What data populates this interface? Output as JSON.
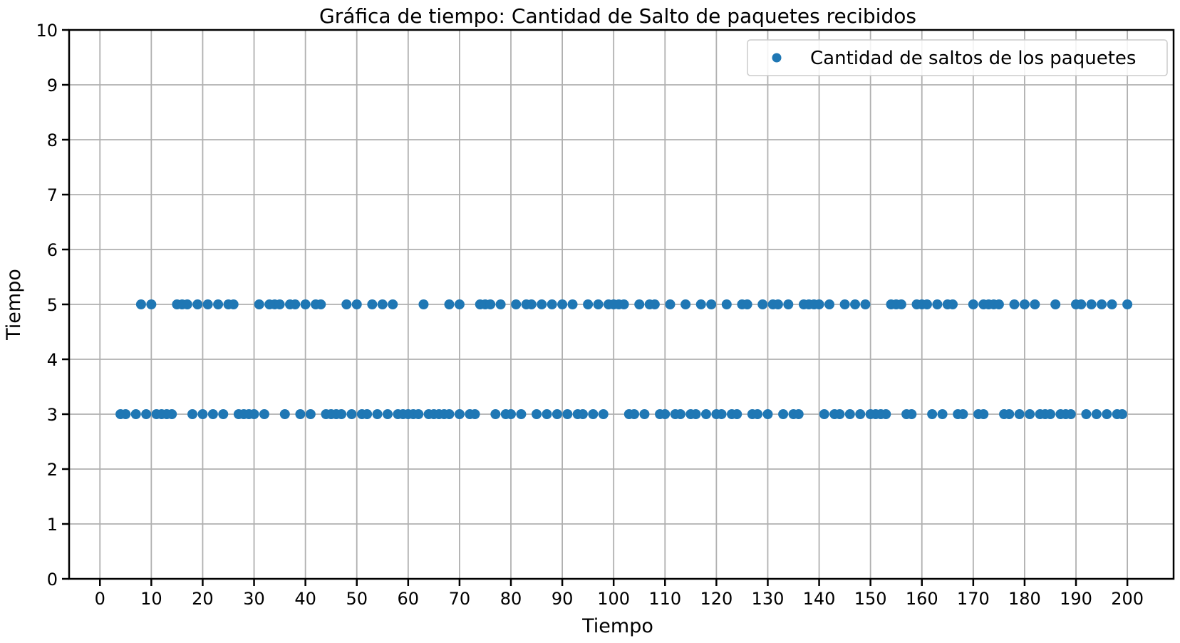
{
  "chart_data": {
    "type": "scatter",
    "title": "Gráfica de tiempo: Cantidad de Salto de paquetes recibidos",
    "xlabel": "Tiempo",
    "ylabel": "Tiempo",
    "xlim": [
      -6,
      209
    ],
    "ylim": [
      0,
      10
    ],
    "xticks": [
      "0",
      "10",
      "20",
      "30",
      "40",
      "50",
      "60",
      "70",
      "80",
      "90",
      "100",
      "110",
      "120",
      "130",
      "140",
      "150",
      "160",
      "170",
      "180",
      "190",
      "200"
    ],
    "yticks": [
      "0",
      "1",
      "2",
      "3",
      "4",
      "5",
      "6",
      "7",
      "8",
      "9",
      "10"
    ],
    "grid": true,
    "legend_position": "top-right",
    "colors": {
      "series": "#1f77b4",
      "grid": "#b0b0b0"
    },
    "series": [
      {
        "name": "Cantidad de saltos de los paquetes",
        "points_y3": [
          4,
          5,
          7,
          9,
          11,
          12,
          13,
          14,
          18,
          20,
          22,
          24,
          27,
          28,
          29,
          30,
          32,
          36,
          39,
          41,
          44,
          45,
          46,
          47,
          49,
          51,
          52,
          54,
          56,
          58,
          59,
          60,
          61,
          62,
          64,
          65,
          66,
          67,
          68,
          70,
          72,
          73,
          77,
          79,
          80,
          82,
          85,
          87,
          89,
          91,
          93,
          94,
          96,
          98,
          103,
          104,
          106,
          109,
          110,
          112,
          113,
          115,
          116,
          118,
          120,
          121,
          123,
          124,
          127,
          128,
          130,
          133,
          135,
          136,
          141,
          143,
          144,
          146,
          148,
          150,
          151,
          152,
          153,
          157,
          158,
          162,
          164,
          167,
          168,
          171,
          172,
          176,
          177,
          179,
          181,
          183,
          184,
          185,
          187,
          188,
          189,
          192,
          194,
          196,
          198,
          199
        ],
        "points_y5": [
          8,
          10,
          15,
          16,
          17,
          19,
          21,
          23,
          25,
          26,
          31,
          33,
          34,
          35,
          37,
          38,
          40,
          42,
          43,
          48,
          50,
          53,
          55,
          57,
          63,
          68,
          70,
          74,
          75,
          76,
          78,
          81,
          83,
          84,
          86,
          88,
          90,
          92,
          95,
          97,
          99,
          100,
          101,
          102,
          105,
          107,
          108,
          111,
          114,
          117,
          119,
          122,
          125,
          126,
          129,
          131,
          132,
          134,
          137,
          138,
          139,
          140,
          142,
          145,
          147,
          149,
          154,
          155,
          156,
          159,
          160,
          161,
          163,
          165,
          166,
          170,
          172,
          173,
          174,
          175,
          178,
          180,
          182,
          186,
          190,
          191,
          193,
          195,
          197,
          200
        ]
      }
    ]
  }
}
